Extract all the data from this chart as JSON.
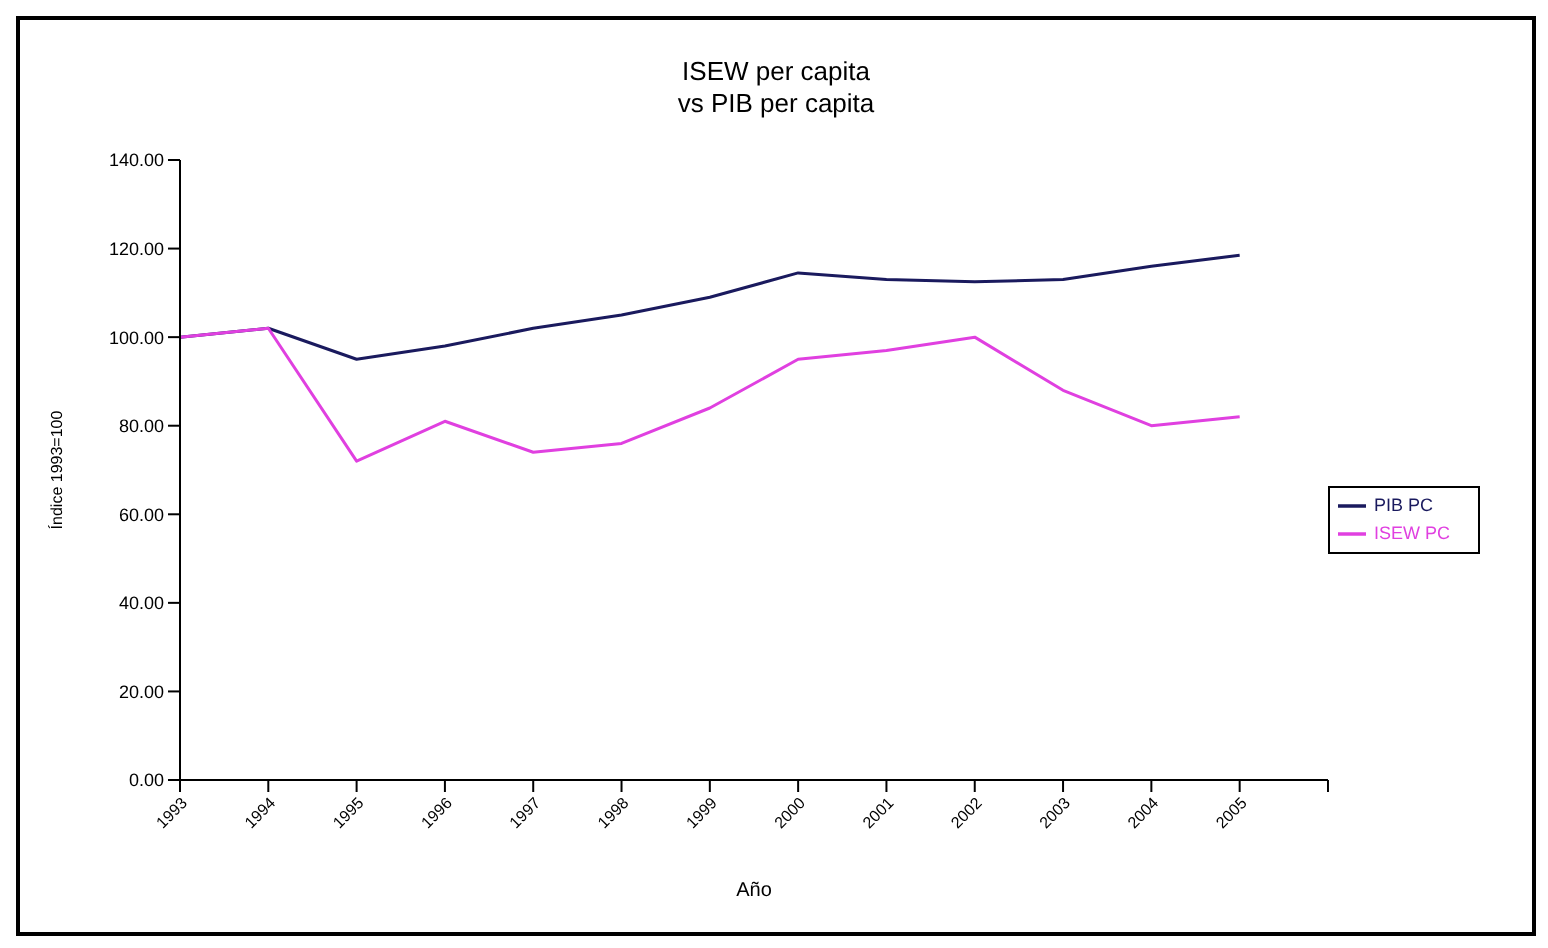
{
  "chart_data": {
    "type": "line",
    "title": "ISEW per capita\nvs PIB per capita",
    "xlabel": "Año",
    "ylabel": "Índice 1993=100",
    "categories": [
      "1993",
      "1994",
      "1995",
      "1996",
      "1997",
      "1998",
      "1999",
      "2000",
      "2001",
      "2002",
      "2003",
      "2004",
      "2005",
      null
    ],
    "series": [
      {
        "name": "PIB PC",
        "color": "#1a1a5e",
        "values": [
          100,
          102,
          95,
          98,
          102,
          105,
          109,
          114.5,
          113,
          112.5,
          113,
          116,
          118.5,
          null
        ]
      },
      {
        "name": "ISEW PC",
        "color": "#e040e0",
        "values": [
          100,
          102,
          72,
          81,
          74,
          76,
          84,
          95,
          97,
          100,
          88,
          80,
          82,
          null
        ]
      }
    ],
    "ylim": [
      0,
      140
    ],
    "yticks": [
      {
        "value": 0,
        "label": "0.00"
      },
      {
        "value": 20,
        "label": "20.00"
      },
      {
        "value": 40,
        "label": "40.00"
      },
      {
        "value": 60,
        "label": "60.00"
      },
      {
        "value": 80,
        "label": "80.00"
      },
      {
        "value": 100,
        "label": "100.00"
      },
      {
        "value": 120,
        "label": "120.00"
      },
      {
        "value": 140,
        "label": "140.00"
      }
    ],
    "grid": false,
    "legend": "right",
    "marker": "none",
    "line_style": "solid"
  }
}
